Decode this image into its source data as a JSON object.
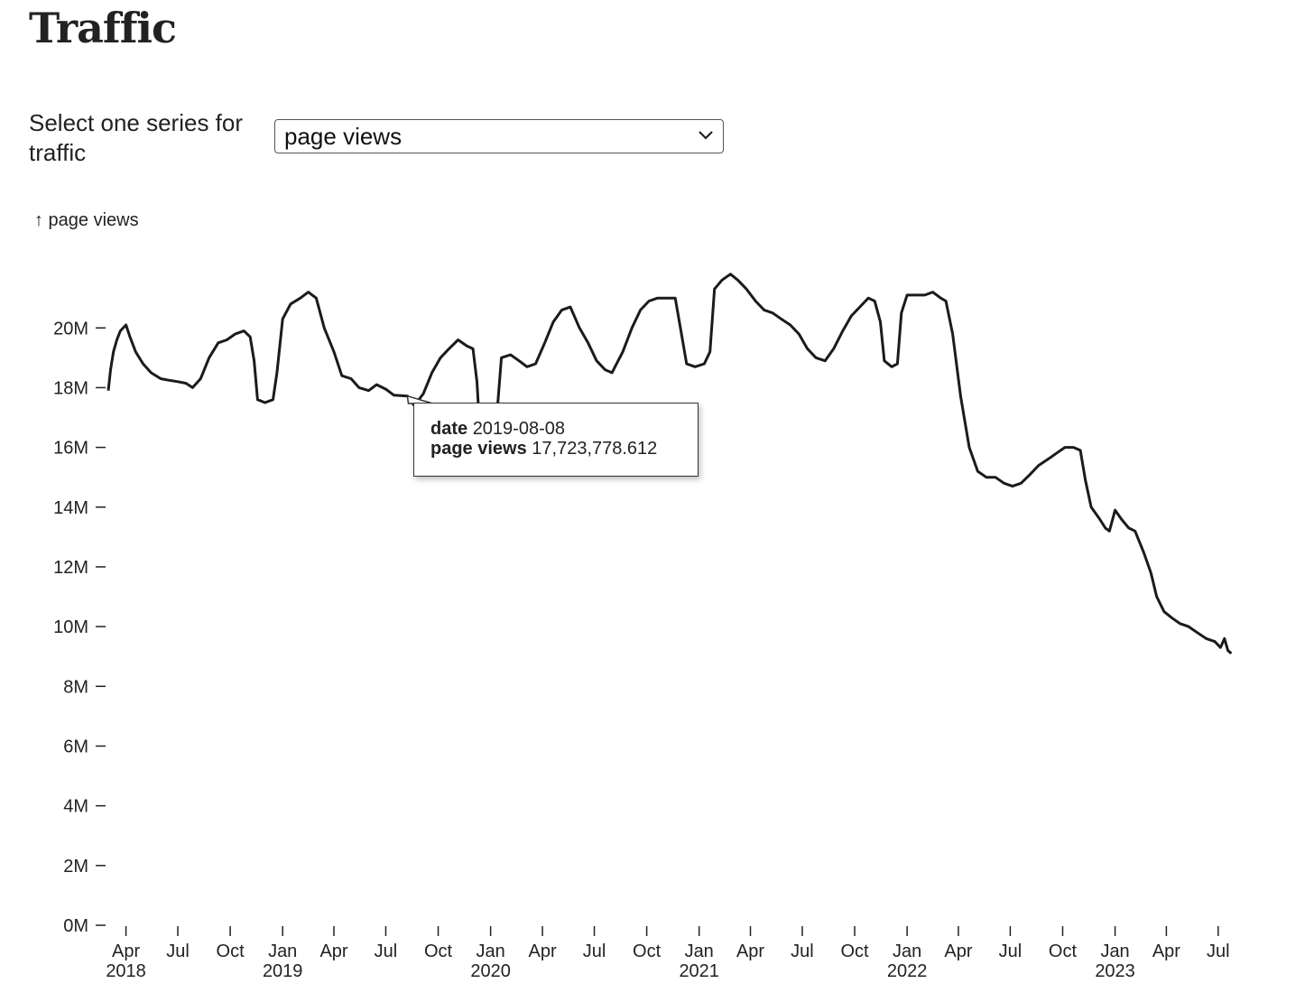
{
  "page": {
    "title": "Traffic"
  },
  "selector": {
    "label": "Select one series for traffic",
    "value": "page views",
    "icon": "chevron-down-icon"
  },
  "tooltip": {
    "date_label": "date",
    "date_value": "2019-08-08",
    "views_label": "page views",
    "views_value": "17,723,778.612"
  },
  "chart_data": {
    "type": "line",
    "title": "Traffic",
    "ylabel": "↑ page views",
    "xlabel": "",
    "ylim": [
      0,
      23000000
    ],
    "xlim": [
      "2018-03-01",
      "2023-07-25"
    ],
    "grid": false,
    "y_ticks": [
      {
        "value": 0,
        "label": "0M"
      },
      {
        "value": 2000000,
        "label": "2M"
      },
      {
        "value": 4000000,
        "label": "4M"
      },
      {
        "value": 6000000,
        "label": "6M"
      },
      {
        "value": 8000000,
        "label": "8M"
      },
      {
        "value": 10000000,
        "label": "10M"
      },
      {
        "value": 12000000,
        "label": "12M"
      },
      {
        "value": 14000000,
        "label": "14M"
      },
      {
        "value": 16000000,
        "label": "16M"
      },
      {
        "value": 18000000,
        "label": "18M"
      },
      {
        "value": 20000000,
        "label": "20M"
      }
    ],
    "x_ticks": [
      {
        "date": "2018-04-01",
        "label": "Apr",
        "year": "2018"
      },
      {
        "date": "2018-07-01",
        "label": "Jul",
        "year": ""
      },
      {
        "date": "2018-10-01",
        "label": "Oct",
        "year": ""
      },
      {
        "date": "2019-01-01",
        "label": "Jan",
        "year": "2019"
      },
      {
        "date": "2019-04-01",
        "label": "Apr",
        "year": ""
      },
      {
        "date": "2019-07-01",
        "label": "Jul",
        "year": ""
      },
      {
        "date": "2019-10-01",
        "label": "Oct",
        "year": ""
      },
      {
        "date": "2020-01-01",
        "label": "Jan",
        "year": "2020"
      },
      {
        "date": "2020-04-01",
        "label": "Apr",
        "year": ""
      },
      {
        "date": "2020-07-01",
        "label": "Jul",
        "year": ""
      },
      {
        "date": "2020-10-01",
        "label": "Oct",
        "year": ""
      },
      {
        "date": "2021-01-01",
        "label": "Jan",
        "year": "2021"
      },
      {
        "date": "2021-04-01",
        "label": "Apr",
        "year": ""
      },
      {
        "date": "2021-07-01",
        "label": "Jul",
        "year": ""
      },
      {
        "date": "2021-10-01",
        "label": "Oct",
        "year": ""
      },
      {
        "date": "2022-01-01",
        "label": "Jan",
        "year": "2022"
      },
      {
        "date": "2022-04-01",
        "label": "Apr",
        "year": ""
      },
      {
        "date": "2022-07-01",
        "label": "Jul",
        "year": ""
      },
      {
        "date": "2022-10-01",
        "label": "Oct",
        "year": ""
      },
      {
        "date": "2023-01-01",
        "label": "Jan",
        "year": "2023"
      },
      {
        "date": "2023-04-01",
        "label": "Apr",
        "year": ""
      },
      {
        "date": "2023-07-01",
        "label": "Jul",
        "year": ""
      }
    ],
    "line_color": "#1b1b1b",
    "series": [
      {
        "name": "page views",
        "points": [
          [
            "2018-03-01",
            17.9
          ],
          [
            "2018-03-05",
            18.6
          ],
          [
            "2018-03-10",
            19.2
          ],
          [
            "2018-03-16",
            19.6
          ],
          [
            "2018-03-22",
            19.9
          ],
          [
            "2018-04-01",
            20.1
          ],
          [
            "2018-04-08",
            19.7
          ],
          [
            "2018-04-18",
            19.2
          ],
          [
            "2018-05-01",
            18.8
          ],
          [
            "2018-05-15",
            18.5
          ],
          [
            "2018-06-01",
            18.3
          ],
          [
            "2018-06-15",
            18.25
          ],
          [
            "2018-07-01",
            18.2
          ],
          [
            "2018-07-15",
            18.15
          ],
          [
            "2018-07-27",
            18.0
          ],
          [
            "2018-08-10",
            18.3
          ],
          [
            "2018-08-25",
            19.0
          ],
          [
            "2018-09-10",
            19.5
          ],
          [
            "2018-09-25",
            19.6
          ],
          [
            "2018-10-10",
            19.8
          ],
          [
            "2018-10-25",
            19.9
          ],
          [
            "2018-11-05",
            19.7
          ],
          [
            "2018-11-12",
            18.9
          ],
          [
            "2018-11-18",
            17.6
          ],
          [
            "2018-12-01",
            17.5
          ],
          [
            "2018-12-15",
            17.6
          ],
          [
            "2018-12-22",
            18.5
          ],
          [
            "2019-01-01",
            20.3
          ],
          [
            "2019-01-15",
            20.8
          ],
          [
            "2019-02-01",
            21.0
          ],
          [
            "2019-02-15",
            21.2
          ],
          [
            "2019-03-01",
            21.0
          ],
          [
            "2019-03-15",
            20.0
          ],
          [
            "2019-04-01",
            19.2
          ],
          [
            "2019-04-15",
            18.4
          ],
          [
            "2019-05-01",
            18.3
          ],
          [
            "2019-05-15",
            18.0
          ],
          [
            "2019-06-01",
            17.9
          ],
          [
            "2019-06-15",
            18.1
          ],
          [
            "2019-07-01",
            17.95
          ],
          [
            "2019-07-15",
            17.75
          ],
          [
            "2019-08-08",
            17.72
          ],
          [
            "2019-08-20",
            17.4
          ],
          [
            "2019-09-05",
            17.8
          ],
          [
            "2019-09-20",
            18.5
          ],
          [
            "2019-10-05",
            19.0
          ],
          [
            "2019-10-20",
            19.3
          ],
          [
            "2019-11-05",
            19.6
          ],
          [
            "2019-11-20",
            19.4
          ],
          [
            "2019-12-01",
            19.3
          ],
          [
            "2019-12-08",
            18.2
          ],
          [
            "2019-12-12",
            16.9
          ],
          [
            "2019-12-20",
            16.8
          ],
          [
            "2020-01-05",
            16.9
          ],
          [
            "2020-01-12",
            17.1
          ],
          [
            "2020-01-20",
            19.0
          ],
          [
            "2020-02-05",
            19.1
          ],
          [
            "2020-02-20",
            18.9
          ],
          [
            "2020-03-05",
            18.7
          ],
          [
            "2020-03-20",
            18.8
          ],
          [
            "2020-04-05",
            19.5
          ],
          [
            "2020-04-20",
            20.2
          ],
          [
            "2020-05-05",
            20.6
          ],
          [
            "2020-05-20",
            20.7
          ],
          [
            "2020-06-05",
            20.0
          ],
          [
            "2020-06-20",
            19.5
          ],
          [
            "2020-07-05",
            18.9
          ],
          [
            "2020-07-20",
            18.6
          ],
          [
            "2020-08-01",
            18.5
          ],
          [
            "2020-08-20",
            19.2
          ],
          [
            "2020-09-05",
            20.0
          ],
          [
            "2020-09-20",
            20.6
          ],
          [
            "2020-10-05",
            20.9
          ],
          [
            "2020-10-20",
            21.0
          ],
          [
            "2020-11-05",
            21.0
          ],
          [
            "2020-11-20",
            21.0
          ],
          [
            "2020-12-01",
            19.8
          ],
          [
            "2020-12-10",
            18.8
          ],
          [
            "2020-12-25",
            18.7
          ],
          [
            "2021-01-10",
            18.8
          ],
          [
            "2021-01-20",
            19.2
          ],
          [
            "2021-01-28",
            21.3
          ],
          [
            "2021-02-10",
            21.6
          ],
          [
            "2021-02-25",
            21.8
          ],
          [
            "2021-03-10",
            21.6
          ],
          [
            "2021-03-25",
            21.3
          ],
          [
            "2021-04-10",
            20.9
          ],
          [
            "2021-04-25",
            20.6
          ],
          [
            "2021-05-10",
            20.5
          ],
          [
            "2021-05-25",
            20.3
          ],
          [
            "2021-06-10",
            20.1
          ],
          [
            "2021-06-25",
            19.8
          ],
          [
            "2021-07-10",
            19.3
          ],
          [
            "2021-07-25",
            19.0
          ],
          [
            "2021-08-10",
            18.9
          ],
          [
            "2021-08-25",
            19.3
          ],
          [
            "2021-09-10",
            19.9
          ],
          [
            "2021-09-25",
            20.4
          ],
          [
            "2021-10-10",
            20.7
          ],
          [
            "2021-10-25",
            21.0
          ],
          [
            "2021-11-05",
            20.9
          ],
          [
            "2021-11-15",
            20.2
          ],
          [
            "2021-11-22",
            18.9
          ],
          [
            "2021-12-05",
            18.7
          ],
          [
            "2021-12-15",
            18.8
          ],
          [
            "2021-12-22",
            20.5
          ],
          [
            "2022-01-01",
            21.1
          ],
          [
            "2022-01-15",
            21.1
          ],
          [
            "2022-02-01",
            21.1
          ],
          [
            "2022-02-15",
            21.2
          ],
          [
            "2022-03-01",
            21.0
          ],
          [
            "2022-03-10",
            20.9
          ],
          [
            "2022-03-22",
            19.8
          ],
          [
            "2022-04-05",
            17.7
          ],
          [
            "2022-04-20",
            16.0
          ],
          [
            "2022-05-05",
            15.2
          ],
          [
            "2022-05-20",
            15.0
          ],
          [
            "2022-06-05",
            15.0
          ],
          [
            "2022-06-20",
            14.8
          ],
          [
            "2022-07-05",
            14.7
          ],
          [
            "2022-07-20",
            14.8
          ],
          [
            "2022-08-05",
            15.1
          ],
          [
            "2022-08-20",
            15.4
          ],
          [
            "2022-09-05",
            15.6
          ],
          [
            "2022-09-20",
            15.8
          ],
          [
            "2022-10-05",
            16.0
          ],
          [
            "2022-10-20",
            16.0
          ],
          [
            "2022-11-01",
            15.9
          ],
          [
            "2022-11-10",
            14.9
          ],
          [
            "2022-11-20",
            14.0
          ],
          [
            "2022-12-05",
            13.6
          ],
          [
            "2022-12-15",
            13.3
          ],
          [
            "2022-12-22",
            13.2
          ],
          [
            "2023-01-01",
            13.9
          ],
          [
            "2023-01-12",
            13.6
          ],
          [
            "2023-01-25",
            13.3
          ],
          [
            "2023-02-05",
            13.2
          ],
          [
            "2023-02-20",
            12.5
          ],
          [
            "2023-03-05",
            11.8
          ],
          [
            "2023-03-15",
            11.0
          ],
          [
            "2023-03-28",
            10.5
          ],
          [
            "2023-04-10",
            10.3
          ],
          [
            "2023-04-25",
            10.1
          ],
          [
            "2023-05-10",
            10.0
          ],
          [
            "2023-05-25",
            9.8
          ],
          [
            "2023-06-10",
            9.6
          ],
          [
            "2023-06-25",
            9.5
          ],
          [
            "2023-07-05",
            9.3
          ],
          [
            "2023-07-12",
            9.6
          ],
          [
            "2023-07-18",
            9.2
          ],
          [
            "2023-07-24",
            9.1
          ]
        ],
        "value_unit_multiplier": 1000000
      }
    ]
  }
}
